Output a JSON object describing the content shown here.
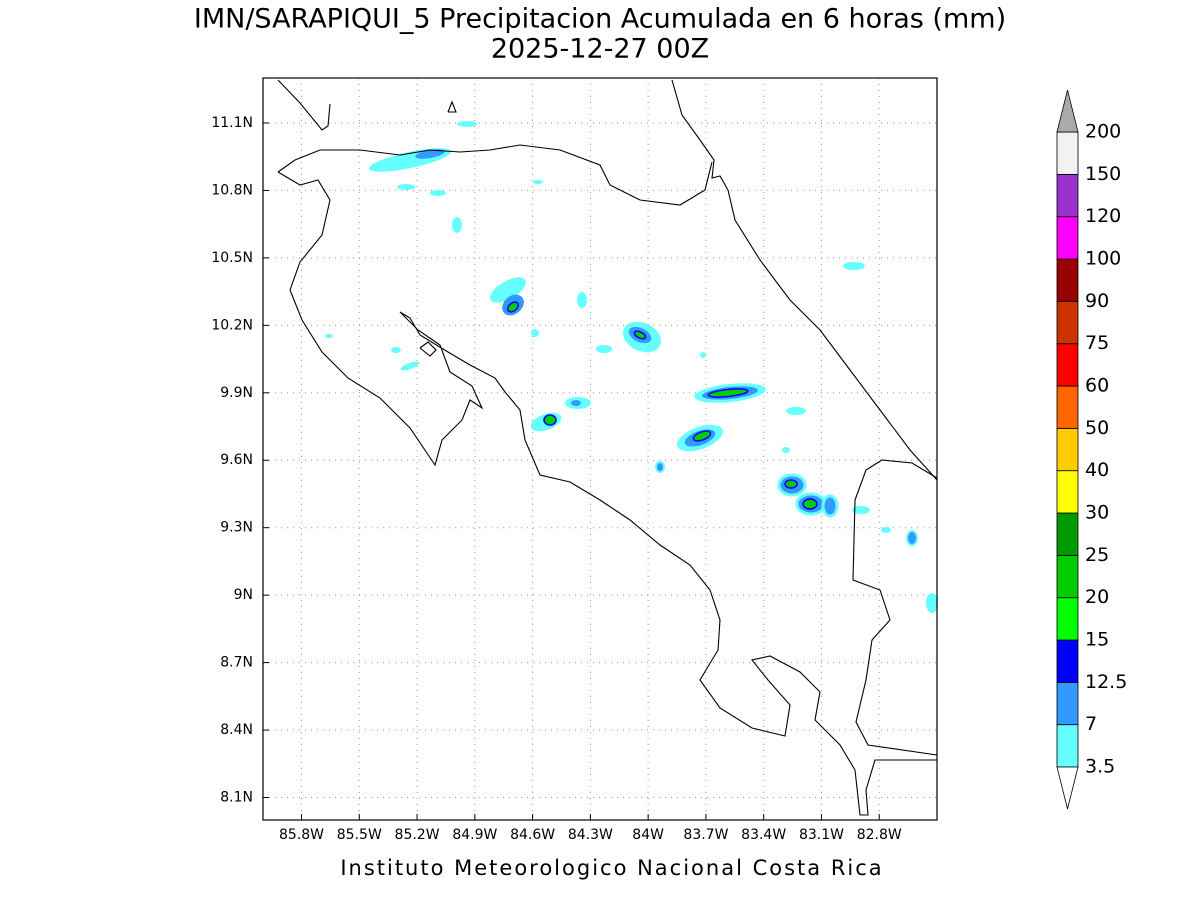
{
  "map": {
    "title": "IMN/SARAPIQUI_5 Precipitacion Acumulada en 6 horas (mm)",
    "subtitle": "2025-12-27 00Z",
    "footer": "Instituto Meteorologico Nacional Costa Rica",
    "lonlim": [
      -86.0,
      -82.5
    ],
    "latlim": [
      8.0,
      11.3
    ],
    "lon_ticks": [
      {
        "value": -85.8,
        "label": "85.8W"
      },
      {
        "value": -85.5,
        "label": "85.5W"
      },
      {
        "value": -85.2,
        "label": "85.2W"
      },
      {
        "value": -84.9,
        "label": "84.9W"
      },
      {
        "value": -84.6,
        "label": "84.6W"
      },
      {
        "value": -84.3,
        "label": "84.3W"
      },
      {
        "value": -84.0,
        "label": "84W"
      },
      {
        "value": -83.7,
        "label": "83.7W"
      },
      {
        "value": -83.4,
        "label": "83.4W"
      },
      {
        "value": -83.1,
        "label": "83.1W"
      },
      {
        "value": -82.8,
        "label": "82.8W"
      }
    ],
    "lat_ticks": [
      {
        "value": 11.1,
        "label": "11.1N"
      },
      {
        "value": 10.8,
        "label": "10.8N"
      },
      {
        "value": 10.5,
        "label": "10.5N"
      },
      {
        "value": 10.2,
        "label": "10.2N"
      },
      {
        "value": 9.9,
        "label": "9.9N"
      },
      {
        "value": 9.6,
        "label": "9.6N"
      },
      {
        "value": 9.3,
        "label": "9.3N"
      },
      {
        "value": 9.0,
        "label": "9N"
      },
      {
        "value": 8.7,
        "label": "8.7N"
      },
      {
        "value": 8.4,
        "label": "8.4N"
      },
      {
        "value": 8.1,
        "label": "8.1N"
      }
    ],
    "grid": true,
    "colorbar": {
      "levels": [
        3.5,
        7,
        12.5,
        15,
        20,
        25,
        30,
        40,
        50,
        60,
        75,
        90,
        100,
        120,
        150,
        200
      ],
      "colors": [
        "#66ffff",
        "#3399ff",
        "#0000ff",
        "#00ff00",
        "#00cc00",
        "#009900",
        "#ffff00",
        "#ffcc00",
        "#ff6600",
        "#ff0000",
        "#cc3300",
        "#990000",
        "#ff00ff",
        "#9933cc",
        "#f2f2f2"
      ],
      "over_color": "#aaaaaa",
      "under_color": "#ffffff"
    }
  }
}
